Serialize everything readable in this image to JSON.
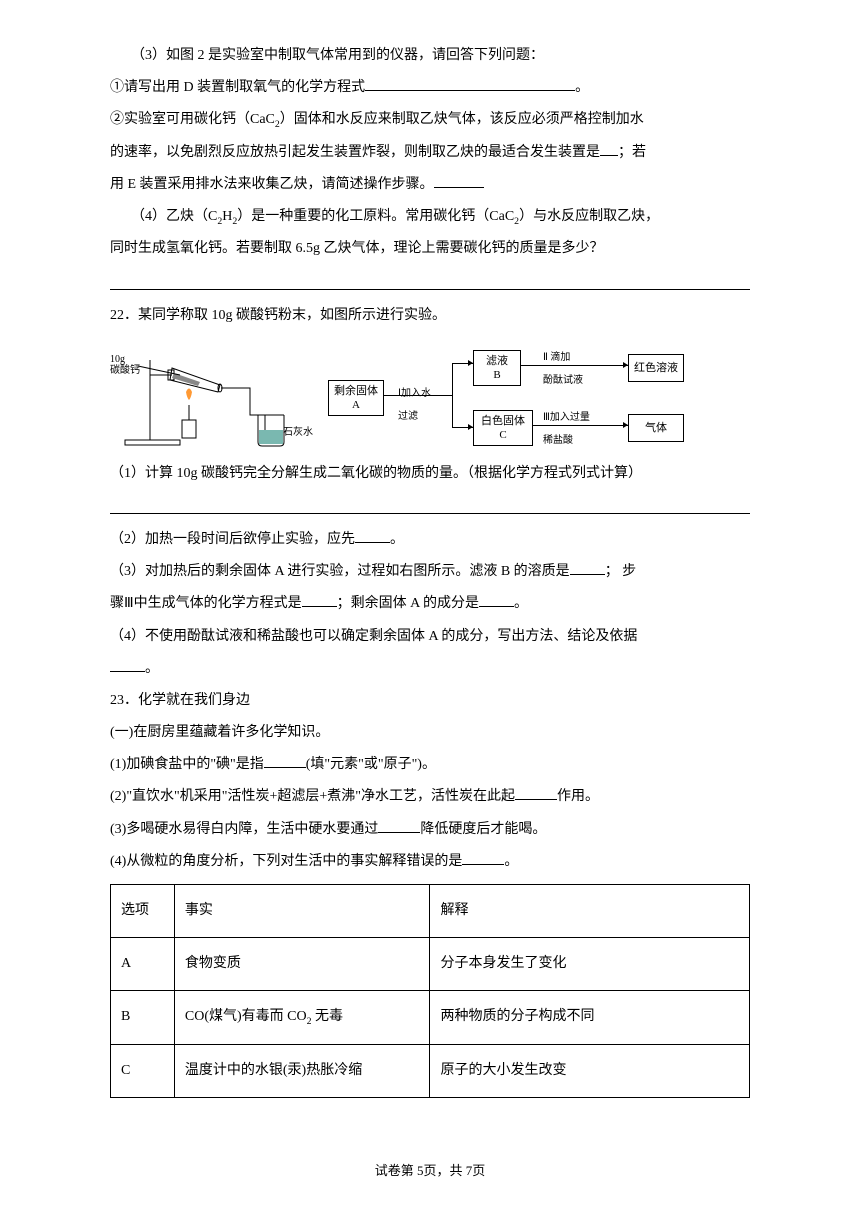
{
  "q3": {
    "intro": "（3）如图 2 是实验室中制取气体常用到的仪器，请回答下列问题：",
    "sub1": "①请写出用 D 装置制取氧气的化学方程式",
    "sub1_after": "。",
    "sub2_l1": "②实验室可用碳化钙（CaC",
    "sub2_l1_after": "）固体和水反应来制取乙炔气体，该反应必须严格控制加水",
    "sub2_l2_a": "的速率，以免剧烈反应放热引起发生装置炸裂，则制取乙炔的最适合发生装置是",
    "sub2_l2_b": "；若",
    "sub2_l3": "用 E 装置采用排水法来收集乙炔，请简述操作步骤。"
  },
  "q4": {
    "l1_a": "（4）乙炔（C",
    "l1_b": "H",
    "l1_c": "）是一种重要的化工原料。常用碳化钙（CaC",
    "l1_d": "）与水反应制取乙炔，",
    "l2": "同时生成氢氧化钙。若要制取 6.5g 乙炔气体，理论上需要碳化钙的质量是多少？"
  },
  "q22": {
    "intro": "22．某同学称取 10g 碳酸钙粉末，如图所示进行实验。",
    "labels": {
      "sample_mass": "10g",
      "sample_name": "碳酸钙",
      "limewater": "石灰水",
      "residue": "剩余固体\nA",
      "step1": "Ⅰ加入水\n过滤",
      "filtrate": "滤液\nB",
      "step2": "Ⅱ 滴加\n酚酞试液",
      "result_top": "红色溶液",
      "white_solid": "白色固体\nC",
      "step3": "Ⅲ加入过量\n稀盐酸",
      "result_bottom": "气体"
    },
    "p1": "（1）计算 10g 碳酸钙完全分解生成二氧化碳的物质的量。（根据化学方程式列式计算）",
    "p2_a": "（2）加热一段时间后欲停止实验，应先",
    "p2_b": "。",
    "p3_l1_a": "（3）对加热后的剩余固体 A 进行实验，过程如右图所示。滤液 B 的溶质是",
    "p3_l1_b": "； 步",
    "p3_l2_a": "骤Ⅲ中生成气体的化学方程式是",
    "p3_l2_b": "；剩余固体 A 的成分是",
    "p3_l2_c": "。",
    "p4_a": "（4）不使用酚酞试液和稀盐酸也可以确定剩余固体 A 的成分，写出方法、结论及依据",
    "p4_b": "。"
  },
  "q23": {
    "intro": "23．化学就在我们身边",
    "section1": "(一)在厨房里蕴藏着许多化学知识。",
    "p1_a": "(1)加碘食盐中的\"碘\"是指",
    "p1_b": "(填\"元素\"或\"原子\")。",
    "p2_a": "(2)\"直饮水\"机采用\"活性炭+超滤层+煮沸\"净水工艺，活性炭在此起",
    "p2_b": "作用。",
    "p3_a": "(3)多喝硬水易得白内障，生活中硬水要通过",
    "p3_b": "降低硬度后才能喝。",
    "p4_a": "(4)从微粒的角度分析，下列对生活中的事实解释错误的是",
    "p4_b": "。"
  },
  "table": {
    "headers": {
      "opt": "选项",
      "fact": "事实",
      "exp": "解释"
    },
    "rows": [
      {
        "opt": "A",
        "fact": "食物变质",
        "exp": "分子本身发生了变化"
      },
      {
        "opt": "B",
        "fact_pre": "CO(煤气)有毒而 CO",
        "fact_post": " 无毒",
        "exp": "两种物质的分子构成不同"
      },
      {
        "opt": "C",
        "fact": "温度计中的水银(汞)热胀冷缩",
        "exp": "原子的大小发生改变"
      }
    ]
  },
  "footer": {
    "page": "试卷第 5页，共 7页"
  },
  "colors": {
    "text": "#000000",
    "bg": "#ffffff",
    "border": "#000000",
    "liquid": "#7ab8b0"
  },
  "fontsize": {
    "body": 14,
    "small": 11,
    "footer": 13
  }
}
